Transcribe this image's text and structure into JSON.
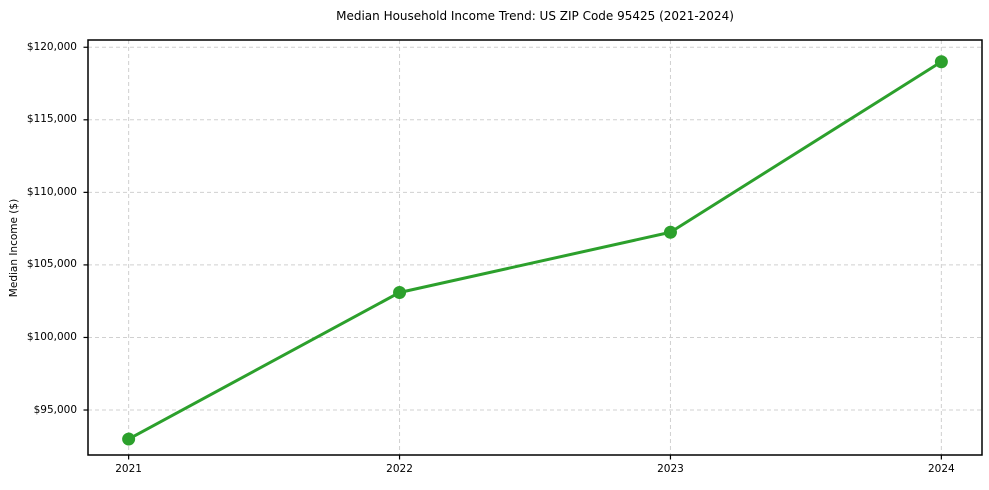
{
  "chart_data": {
    "type": "line",
    "title": "Median Household Income Trend: US ZIP Code 95425 (2021-2024)",
    "xlabel": "",
    "ylabel": "Median Income ($)",
    "x": [
      2021,
      2022,
      2023,
      2024
    ],
    "xtick_labels": [
      "2021",
      "2022",
      "2023",
      "2024"
    ],
    "series": [
      {
        "values": [
          93000,
          103100,
          107250,
          119000
        ],
        "color": "#2ca02c",
        "marker": "circle",
        "line_width": 3,
        "marker_radius": 6.5
      }
    ],
    "yticks": [
      95000,
      100000,
      105000,
      110000,
      115000,
      120000
    ],
    "ytick_labels": [
      "$95,000",
      "$100,000",
      "$105,000",
      "$110,000",
      "$115,000",
      "$120,000"
    ],
    "ylim": [
      91900,
      120500
    ],
    "xlim": [
      2020.85,
      2024.15
    ],
    "grid": true,
    "grid_linestyle": "dashed",
    "grid_color": "#d0d0d0",
    "axis_color": "#000000",
    "background": "#ffffff",
    "legend": "none"
  }
}
